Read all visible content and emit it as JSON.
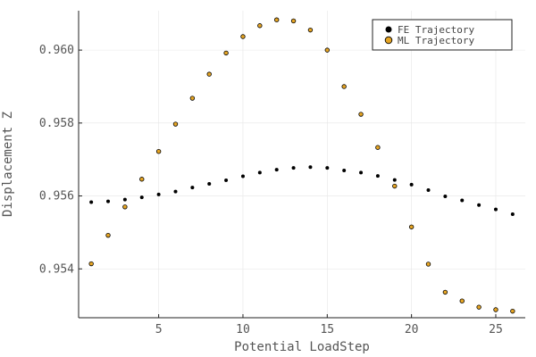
{
  "chart_data": {
    "type": "scatter",
    "title": "",
    "xlabel": "Potential LoadStep",
    "ylabel": "Displacement Z",
    "xlim": [
      0.25,
      26.75
    ],
    "ylim": [
      0.95266,
      0.96108
    ],
    "xticks": [
      5,
      10,
      15,
      20,
      25
    ],
    "yticks": [
      0.954,
      0.956,
      0.958,
      0.96
    ],
    "ytick_labels": [
      "0.954",
      "0.956",
      "0.958",
      "0.960"
    ],
    "grid": true,
    "legend_position": "top-right",
    "series": [
      {
        "name": "FE Trajectory",
        "color": "#000000",
        "x": [
          1,
          2,
          3,
          4,
          5,
          6,
          7,
          8,
          9,
          10,
          11,
          12,
          13,
          14,
          15,
          16,
          17,
          18,
          19,
          20,
          21,
          22,
          23,
          24,
          25,
          26
        ],
        "y": [
          0.95583,
          0.95585,
          0.9559,
          0.95596,
          0.95604,
          0.95612,
          0.95623,
          0.95633,
          0.95643,
          0.95654,
          0.95664,
          0.95672,
          0.95677,
          0.95679,
          0.95677,
          0.9567,
          0.95664,
          0.95655,
          0.95644,
          0.95631,
          0.95616,
          0.95599,
          0.95588,
          0.95575,
          0.95563,
          0.9555
        ]
      },
      {
        "name": "ML Trajectory",
        "color": "#e6a524",
        "x": [
          1,
          2,
          3,
          4,
          5,
          6,
          7,
          8,
          9,
          10,
          11,
          12,
          13,
          14,
          15,
          16,
          17,
          18,
          19,
          20,
          21,
          22,
          23,
          24,
          25,
          26
        ],
        "y": [
          0.95414,
          0.95492,
          0.9557,
          0.95646,
          0.95722,
          0.95797,
          0.95868,
          0.95934,
          0.95992,
          0.96037,
          0.96067,
          0.96083,
          0.9608,
          0.96055,
          0.96,
          0.959,
          0.95824,
          0.95733,
          0.95627,
          0.95515,
          0.95413,
          0.95336,
          0.95312,
          0.95295,
          0.95288,
          0.95284
        ]
      }
    ]
  }
}
